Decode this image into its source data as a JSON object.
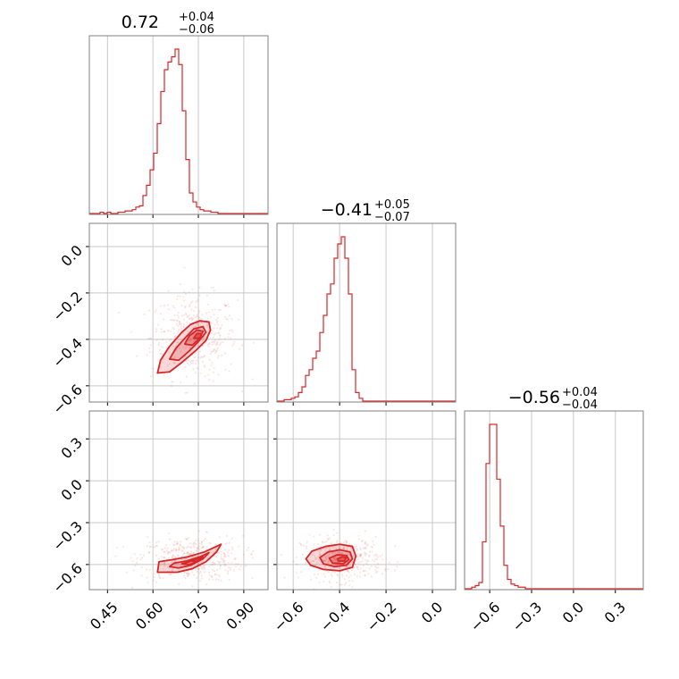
{
  "chart_data": {
    "type": "corner",
    "color": "#d62728",
    "grid": true,
    "parameters": [
      {
        "median": "0.72",
        "err_plus": "+0.04",
        "err_minus": "−0.06",
        "ticks": [
          "0.45",
          "0.60",
          "0.75",
          "0.90"
        ],
        "tick_values": [
          0.45,
          0.6,
          0.75,
          0.9
        ],
        "range": [
          0.39,
          0.98
        ],
        "histogram": {
          "edges_start": 0.39,
          "bin_width": 0.0118,
          "counts": [
            0,
            0,
            0,
            1,
            0,
            1,
            0,
            0,
            1,
            1,
            2,
            2,
            3,
            5,
            6,
            14,
            22,
            34,
            47,
            70,
            95,
            112,
            118,
            122,
            128,
            116,
            80,
            42,
            16,
            9,
            5,
            3,
            2,
            2,
            1,
            1,
            0,
            0,
            0,
            0,
            0,
            0,
            0,
            0,
            0,
            0,
            0,
            0,
            0,
            0
          ]
        }
      },
      {
        "median": "−0.41",
        "err_plus": "+0.05",
        "err_minus": "−0.07",
        "ticks": [
          "0.0",
          "−0.2",
          "−0.4",
          "−0.6"
        ],
        "tick_values": [
          0.0,
          -0.2,
          -0.4,
          -0.6
        ],
        "range": [
          -0.67,
          0.1
        ],
        "histogram": {
          "edges_start": -0.67,
          "bin_width": 0.0154,
          "counts": [
            0,
            0,
            1,
            1,
            2,
            3,
            6,
            10,
            18,
            22,
            30,
            35,
            48,
            60,
            75,
            82,
            100,
            110,
            115,
            100,
            75,
            22,
            6,
            2,
            0,
            0,
            0,
            0,
            0,
            0,
            0,
            0,
            0,
            0,
            0,
            0,
            0,
            0,
            0,
            0,
            0,
            0,
            0,
            0,
            0,
            0,
            0,
            0,
            0,
            0
          ]
        }
      },
      {
        "median": "−0.56",
        "err_plus": "+0.04",
        "err_minus": "−0.04",
        "ticks": [
          "−0.6",
          "−0.3",
          "0.0",
          "0.3"
        ],
        "tick_values": [
          -0.6,
          -0.3,
          0.0,
          0.3
        ],
        "range": [
          -0.78,
          0.5
        ],
        "histogram": {
          "edges_start": -0.78,
          "bin_width": 0.0256,
          "counts": [
            0,
            0,
            1,
            2,
            4,
            30,
            80,
            105,
            105,
            70,
            40,
            15,
            6,
            3,
            2,
            1,
            1,
            0,
            0,
            0,
            0,
            0,
            0,
            0,
            0,
            0,
            0,
            0,
            0,
            0,
            0,
            0,
            0,
            0,
            0,
            0,
            0,
            0,
            0,
            0,
            0,
            0,
            0,
            0,
            0,
            0,
            0,
            0,
            0,
            0
          ]
        }
      }
    ],
    "joint": [
      {
        "x_param": 0,
        "y_param": 1,
        "center": [
          0.735,
          -0.39
        ],
        "contours": [
          [
            [
              0.615,
              -0.545
            ],
            [
              0.625,
              -0.49
            ],
            [
              0.655,
              -0.43
            ],
            [
              0.695,
              -0.37
            ],
            [
              0.725,
              -0.335
            ],
            [
              0.755,
              -0.32
            ],
            [
              0.785,
              -0.325
            ],
            [
              0.79,
              -0.36
            ],
            [
              0.775,
              -0.405
            ],
            [
              0.74,
              -0.45
            ],
            [
              0.695,
              -0.5
            ],
            [
              0.655,
              -0.54
            ]
          ],
          [
            [
              0.655,
              -0.485
            ],
            [
              0.675,
              -0.44
            ],
            [
              0.705,
              -0.395
            ],
            [
              0.735,
              -0.355
            ],
            [
              0.765,
              -0.345
            ],
            [
              0.775,
              -0.37
            ],
            [
              0.75,
              -0.41
            ],
            [
              0.72,
              -0.45
            ],
            [
              0.685,
              -0.49
            ]
          ],
          [
            [
              0.705,
              -0.42
            ],
            [
              0.72,
              -0.385
            ],
            [
              0.745,
              -0.36
            ],
            [
              0.765,
              -0.365
            ],
            [
              0.755,
              -0.395
            ],
            [
              0.73,
              -0.425
            ]
          ],
          [
            [
              0.735,
              -0.395
            ],
            [
              0.745,
              -0.375
            ],
            [
              0.76,
              -0.375
            ],
            [
              0.755,
              -0.395
            ]
          ]
        ]
      },
      {
        "x_param": 0,
        "y_param": 2,
        "center": [
          0.725,
          -0.56
        ],
        "contours": [
          [
            [
              0.615,
              -0.655
            ],
            [
              0.62,
              -0.58
            ],
            [
              0.665,
              -0.565
            ],
            [
              0.715,
              -0.545
            ],
            [
              0.77,
              -0.51
            ],
            [
              0.825,
              -0.455
            ],
            [
              0.81,
              -0.51
            ],
            [
              0.775,
              -0.58
            ],
            [
              0.73,
              -0.63
            ],
            [
              0.68,
              -0.655
            ]
          ],
          [
            [
              0.655,
              -0.615
            ],
            [
              0.67,
              -0.59
            ],
            [
              0.71,
              -0.575
            ],
            [
              0.755,
              -0.545
            ],
            [
              0.785,
              -0.515
            ],
            [
              0.765,
              -0.56
            ],
            [
              0.725,
              -0.605
            ],
            [
              0.685,
              -0.625
            ]
          ],
          [
            [
              0.695,
              -0.595
            ],
            [
              0.72,
              -0.58
            ],
            [
              0.75,
              -0.555
            ],
            [
              0.765,
              -0.545
            ],
            [
              0.745,
              -0.58
            ],
            [
              0.72,
              -0.6
            ]
          ],
          [
            [
              0.73,
              -0.575
            ],
            [
              0.745,
              -0.56
            ],
            [
              0.755,
              -0.56
            ],
            [
              0.745,
              -0.58
            ]
          ]
        ]
      },
      {
        "x_param": 1,
        "y_param": 2,
        "center": [
          -0.39,
          -0.56
        ],
        "contours": [
          [
            [
              -0.545,
              -0.56
            ],
            [
              -0.52,
              -0.505
            ],
            [
              -0.46,
              -0.47
            ],
            [
              -0.4,
              -0.455
            ],
            [
              -0.345,
              -0.47
            ],
            [
              -0.33,
              -0.54
            ],
            [
              -0.345,
              -0.62
            ],
            [
              -0.4,
              -0.645
            ],
            [
              -0.47,
              -0.635
            ],
            [
              -0.525,
              -0.605
            ]
          ],
          [
            [
              -0.485,
              -0.55
            ],
            [
              -0.45,
              -0.51
            ],
            [
              -0.4,
              -0.495
            ],
            [
              -0.355,
              -0.51
            ],
            [
              -0.345,
              -0.56
            ],
            [
              -0.37,
              -0.605
            ],
            [
              -0.42,
              -0.615
            ],
            [
              -0.47,
              -0.595
            ]
          ],
          [
            [
              -0.445,
              -0.555
            ],
            [
              -0.41,
              -0.53
            ],
            [
              -0.37,
              -0.535
            ],
            [
              -0.36,
              -0.565
            ],
            [
              -0.385,
              -0.595
            ],
            [
              -0.43,
              -0.59
            ]
          ],
          [
            [
              -0.41,
              -0.56
            ],
            [
              -0.39,
              -0.545
            ],
            [
              -0.37,
              -0.55
            ],
            [
              -0.38,
              -0.575
            ],
            [
              -0.405,
              -0.575
            ]
          ]
        ]
      }
    ]
  }
}
